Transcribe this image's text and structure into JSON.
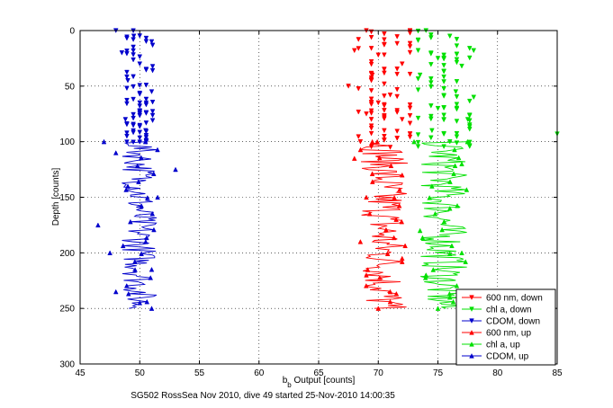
{
  "chart_data": {
    "type": "scatter",
    "title": "",
    "xlabel_main": "b",
    "xlabel_sub": "b",
    "xlabel_rest": " Output [counts]",
    "ylabel": "Depth [counts]",
    "caption": "SG502 RossSea Nov 2010, dive 49 started 25-Nov-2010 14:00:35",
    "xlim": [
      45,
      85
    ],
    "ylim": [
      0,
      300
    ],
    "y_reversed": true,
    "grid": true,
    "legend_position": "lower-right",
    "xticks": [
      45,
      50,
      55,
      60,
      65,
      70,
      75,
      80,
      85
    ],
    "yticks": [
      0,
      50,
      100,
      150,
      200,
      250,
      300
    ],
    "series": [
      {
        "name": "600 nm, down",
        "color": "#ff0000",
        "marker": "triangle-down",
        "center": 70.5,
        "spread": 1.8,
        "points": [
          [
            69,
            0
          ],
          [
            70.5,
            3
          ],
          [
            68,
            18
          ],
          [
            70,
            22
          ],
          [
            72,
            30
          ],
          [
            69.5,
            40
          ],
          [
            67.5,
            50
          ],
          [
            71,
            58
          ],
          [
            70,
            65
          ],
          [
            69,
            75
          ],
          [
            72,
            80
          ],
          [
            70.5,
            90
          ],
          [
            68.5,
            100
          ],
          [
            71,
            105
          ]
        ]
      },
      {
        "name": "chl a, down",
        "color": "#00e000",
        "marker": "triangle-down",
        "center": 75.5,
        "spread": 1.8,
        "points": [
          [
            74,
            0
          ],
          [
            76,
            5
          ],
          [
            78,
            18
          ],
          [
            75,
            25
          ],
          [
            77,
            32
          ],
          [
            73.5,
            40
          ],
          [
            76.5,
            55
          ],
          [
            78,
            60
          ],
          [
            75,
            70
          ],
          [
            77.5,
            80
          ],
          [
            74.5,
            90
          ],
          [
            85,
            93
          ],
          [
            76,
            100
          ]
        ]
      },
      {
        "name": "CDOM, down",
        "color": "#0000cc",
        "marker": "triangle-down",
        "center": 50,
        "spread": 0.9,
        "points": [
          [
            48,
            0
          ],
          [
            49.5,
            5
          ],
          [
            51,
            10
          ],
          [
            48.5,
            20
          ],
          [
            50,
            30
          ],
          [
            49,
            45
          ],
          [
            51,
            55
          ],
          [
            50,
            65
          ],
          [
            48.8,
            80
          ],
          [
            50.5,
            90
          ]
        ]
      },
      {
        "name": "600 nm, up",
        "color": "#ff0000",
        "marker": "triangle-up",
        "center": 70.5,
        "spread": 2.0,
        "points": [
          [
            69.5,
            100
          ],
          [
            68,
            115
          ],
          [
            72,
            130
          ],
          [
            69,
            150
          ],
          [
            71.5,
            170
          ],
          [
            68.5,
            190
          ],
          [
            72,
            205
          ],
          [
            69,
            220
          ],
          [
            71,
            235
          ],
          [
            70,
            250
          ]
        ]
      },
      {
        "name": "chl a, up",
        "color": "#00e000",
        "marker": "triangle-up",
        "center": 75.5,
        "spread": 2.0,
        "points": [
          [
            73,
            100
          ],
          [
            77,
            120
          ],
          [
            74.5,
            140
          ],
          [
            76,
            160
          ],
          [
            73.5,
            180
          ],
          [
            77,
            200
          ],
          [
            74,
            220
          ],
          [
            76,
            240
          ],
          [
            75,
            250
          ]
        ]
      },
      {
        "name": "CDOM, up",
        "color": "#0000cc",
        "marker": "triangle-up",
        "center": 50,
        "spread": 1.5,
        "points": [
          [
            47,
            100
          ],
          [
            48,
            110
          ],
          [
            53,
            125
          ],
          [
            49,
            140
          ],
          [
            51.5,
            150
          ],
          [
            46.5,
            175
          ],
          [
            50.5,
            190
          ],
          [
            47.5,
            200
          ],
          [
            51,
            215
          ],
          [
            48,
            235
          ],
          [
            50,
            245
          ],
          [
            51,
            250
          ]
        ]
      }
    ],
    "legend": [
      "600 nm, down",
      "chl a, down",
      "CDOM, down",
      "600 nm, up",
      "chl a, up",
      "CDOM, up"
    ]
  }
}
